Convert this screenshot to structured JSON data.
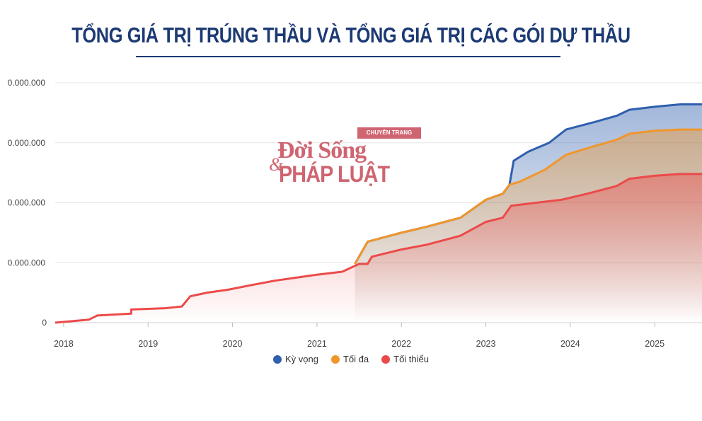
{
  "title_part1": "TỔNG ",
  "title_part2": "GIÁ TRỊ TRÚNG THẦU VÀ TỔNG GIÁ TRỊ CÁC GÓI DỰ THẦU",
  "watermark": {
    "top": "CHUYÊN TRANG",
    "line1": "Đời Sống",
    "amp": "&",
    "line2": "PHÁP LUẬT"
  },
  "colors": {
    "title": "#1c3a73",
    "ky_vong": "#2f5fad",
    "toi_da": "#f0962c",
    "toi_thieu": "#ec4a4a",
    "grid": "#e6e6e6"
  },
  "chart_data": {
    "type": "area",
    "x_ticks": [
      "2018",
      "2019",
      "2020",
      "2021",
      "2022",
      "2023",
      "2024",
      "2025"
    ],
    "y_ticks": [
      "0",
      "0.000.000",
      "0.000.000",
      "0.000.000",
      "0.000.000"
    ],
    "legend": [
      "Kỳ vọng",
      "Tối đa",
      "Tối thiểu"
    ],
    "legend_position": "bottom",
    "grid": true,
    "xlim": [
      2017.9,
      2025.56
    ],
    "ylim": [
      0,
      4
    ],
    "series": [
      {
        "name": "Kỳ vọng",
        "color": "#2f5fad",
        "points": [
          [
            2021.45,
            0.98
          ],
          [
            2021.6,
            1.35
          ],
          [
            2022.0,
            1.5
          ],
          [
            2022.3,
            1.6
          ],
          [
            2022.7,
            1.75
          ],
          [
            2023.0,
            2.05
          ],
          [
            2023.2,
            2.15
          ],
          [
            2023.28,
            2.3
          ],
          [
            2023.33,
            2.7
          ],
          [
            2023.5,
            2.85
          ],
          [
            2023.75,
            3.0
          ],
          [
            2023.95,
            3.22
          ],
          [
            2024.3,
            3.35
          ],
          [
            2024.55,
            3.45
          ],
          [
            2024.7,
            3.55
          ],
          [
            2025.0,
            3.6
          ],
          [
            2025.3,
            3.64
          ],
          [
            2025.56,
            3.64
          ]
        ]
      },
      {
        "name": "Tối đa",
        "color": "#f0962c",
        "points": [
          [
            2021.45,
            0.98
          ],
          [
            2021.6,
            1.35
          ],
          [
            2022.0,
            1.5
          ],
          [
            2022.3,
            1.6
          ],
          [
            2022.7,
            1.75
          ],
          [
            2023.0,
            2.05
          ],
          [
            2023.2,
            2.15
          ],
          [
            2023.28,
            2.3
          ],
          [
            2023.4,
            2.35
          ],
          [
            2023.7,
            2.55
          ],
          [
            2023.95,
            2.8
          ],
          [
            2024.3,
            2.95
          ],
          [
            2024.55,
            3.05
          ],
          [
            2024.7,
            3.15
          ],
          [
            2025.0,
            3.2
          ],
          [
            2025.3,
            3.22
          ],
          [
            2025.56,
            3.22
          ]
        ]
      },
      {
        "name": "Tối thiểu",
        "color": "#ec4a4a",
        "points": [
          [
            2017.9,
            0.0
          ],
          [
            2018.3,
            0.05
          ],
          [
            2018.4,
            0.12
          ],
          [
            2018.8,
            0.15
          ],
          [
            2018.8,
            0.22
          ],
          [
            2019.2,
            0.24
          ],
          [
            2019.4,
            0.27
          ],
          [
            2019.5,
            0.44
          ],
          [
            2019.7,
            0.5
          ],
          [
            2019.95,
            0.55
          ],
          [
            2020.2,
            0.62
          ],
          [
            2020.5,
            0.7
          ],
          [
            2020.8,
            0.76
          ],
          [
            2021.0,
            0.8
          ],
          [
            2021.3,
            0.85
          ],
          [
            2021.5,
            0.98
          ],
          [
            2021.6,
            0.98
          ],
          [
            2021.65,
            1.1
          ],
          [
            2022.0,
            1.22
          ],
          [
            2022.3,
            1.3
          ],
          [
            2022.7,
            1.45
          ],
          [
            2023.0,
            1.68
          ],
          [
            2023.2,
            1.75
          ],
          [
            2023.3,
            1.95
          ],
          [
            2023.6,
            2.0
          ],
          [
            2023.9,
            2.05
          ],
          [
            2024.2,
            2.15
          ],
          [
            2024.55,
            2.28
          ],
          [
            2024.7,
            2.4
          ],
          [
            2025.0,
            2.45
          ],
          [
            2025.3,
            2.48
          ],
          [
            2025.56,
            2.48
          ]
        ]
      }
    ]
  }
}
